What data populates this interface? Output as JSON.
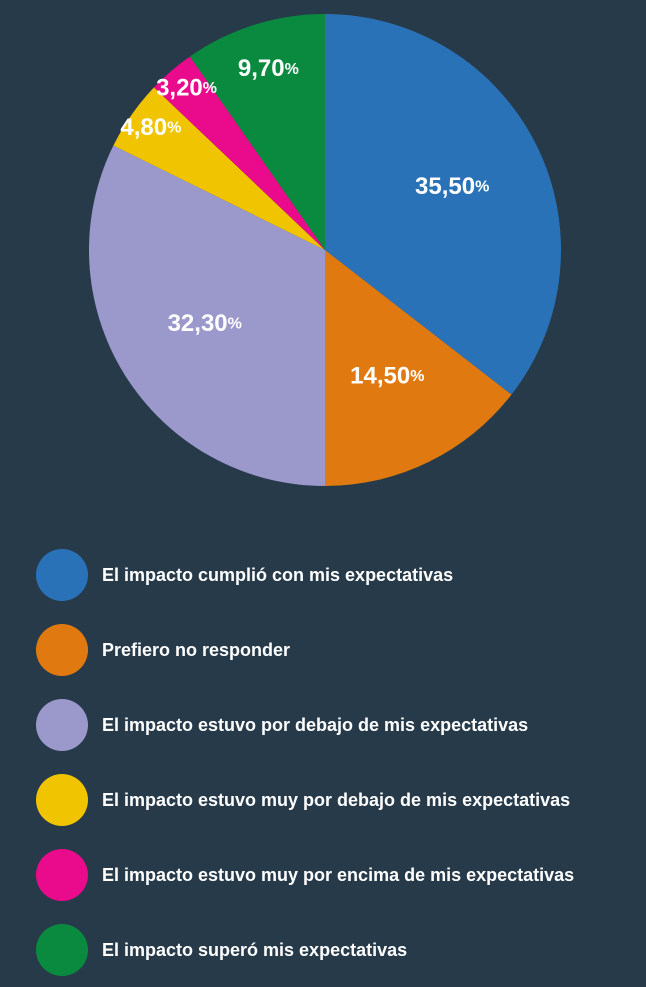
{
  "chart_data": {
    "type": "pie",
    "categories": [
      "El impacto cumplió con mis expectativas",
      "Prefiero no responder",
      "El impacto estuvo por debajo de mis expectativas",
      "El impacto estuvo muy por debajo de mis expectativas",
      "El impacto estuvo muy por encima de mis expectativas",
      "El impacto superó mis expectativas"
    ],
    "values": [
      35.5,
      14.5,
      32.3,
      4.8,
      3.2,
      9.7
    ],
    "value_labels": [
      "35,50%",
      "14,50%",
      "32,30%",
      "4,80%",
      "3,20%",
      "9,70%"
    ],
    "colors": [
      "#2a72b8",
      "#e07a10",
      "#9b98cc",
      "#f0c400",
      "#ea0a8c",
      "#0a8a3e"
    ]
  }
}
